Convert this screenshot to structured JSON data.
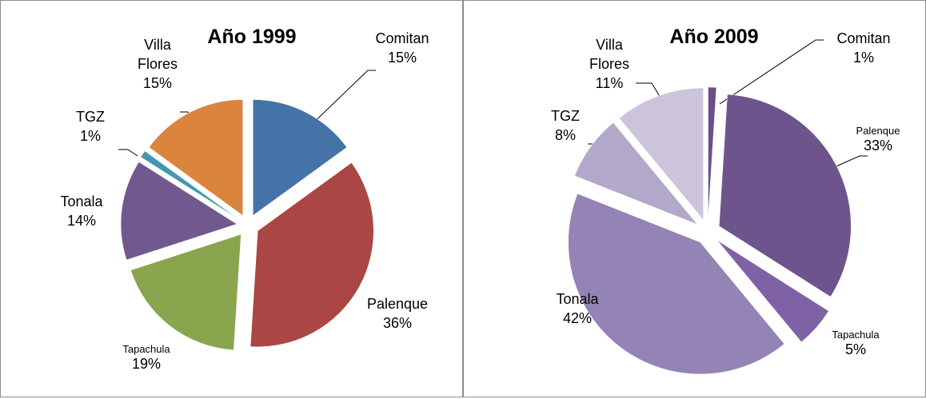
{
  "chart_data": [
    {
      "type": "pie",
      "title": "Año 1999",
      "categories": [
        "Comitan",
        "Palenque",
        "Tapachula",
        "Tonala",
        "TGZ",
        "Villa Flores"
      ],
      "values": [
        15,
        36,
        19,
        14,
        1,
        15
      ],
      "value_labels": [
        "15%",
        "36%",
        "19%",
        "14%",
        "1%",
        "15%"
      ],
      "colors": [
        "#4572a7",
        "#aa4643",
        "#89a54e",
        "#71588f",
        "#4198af",
        "#db843d"
      ]
    },
    {
      "type": "pie",
      "title": "Año 2009",
      "categories": [
        "Comitan",
        "Palenque",
        "Tapachula",
        "Tonala",
        "TGZ",
        "Villa Flores"
      ],
      "values": [
        1,
        33,
        5,
        42,
        8,
        11
      ],
      "value_labels": [
        "1%",
        "33%",
        "5%",
        "42%",
        "8%",
        "11%"
      ],
      "colors": [
        "#6a4f8c",
        "#6e548d",
        "#7f62a6",
        "#9483b5",
        "#b2a8c9",
        "#cbc4db"
      ]
    }
  ]
}
